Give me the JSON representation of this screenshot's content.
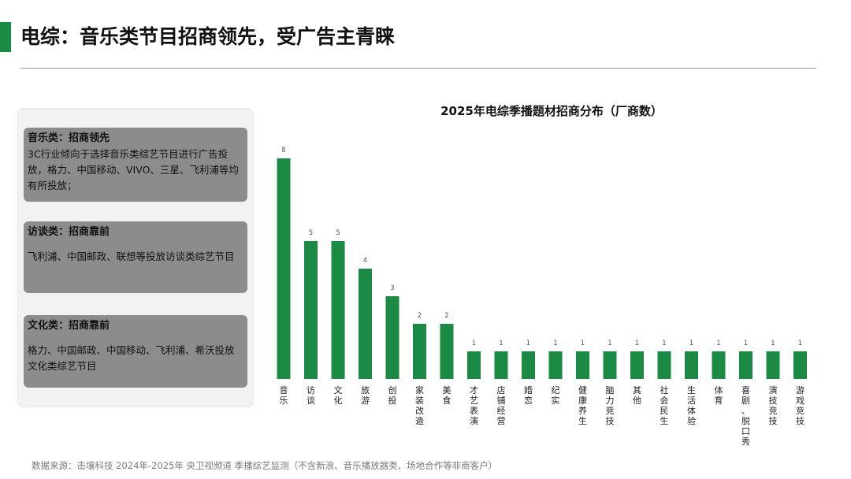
{
  "header": {
    "title": "电综：音乐类节目招商领先，受广告主青睐"
  },
  "sidebar": {
    "cards": [
      {
        "title": "音乐类：招商领先",
        "body": "3C行业倾向于选择音乐类综艺节目进行广告投放，格力、中国移动、VIVO、三星、飞利浦等均有所投放；"
      },
      {
        "title": "访谈类：招商靠前",
        "body": "飞利浦、中国邮政、联想等投放访谈类综艺节目"
      },
      {
        "title": "文化类：招商靠前",
        "body": "格力、中国邮政、中国移动、飞利浦、希沃投放文化类综艺节目"
      }
    ]
  },
  "footnote": "数据来源：击壤科技 2024年-2025年 央卫视频道 季播综艺监测（不含新浪、音乐播放器类、场地合作等非商客户）",
  "colors": {
    "accent": "#1a8a44",
    "bar": "#1a8a44",
    "card_bg": "#8c8c8c"
  },
  "chart_data": {
    "type": "bar",
    "title": "2025年电综季播题材招商分布（厂商数）",
    "xlabel": "",
    "ylabel": "",
    "categories": [
      "音乐",
      "访谈",
      "文化",
      "旅游",
      "创投",
      "家装改造",
      "美食",
      "才艺表演",
      "店铺经营",
      "婚恋",
      "纪实",
      "健康养生",
      "脑力竞技",
      "其他",
      "社会民生",
      "生活体验",
      "体育",
      "喜剧、脱口秀",
      "演技竞技",
      "游戏竞技"
    ],
    "values": [
      8,
      5,
      5,
      4,
      3,
      2,
      2,
      1,
      1,
      1,
      1,
      1,
      1,
      1,
      1,
      1,
      1,
      1,
      1,
      1
    ],
    "ylim": [
      0,
      8
    ],
    "grid": false,
    "data_labels": true
  }
}
